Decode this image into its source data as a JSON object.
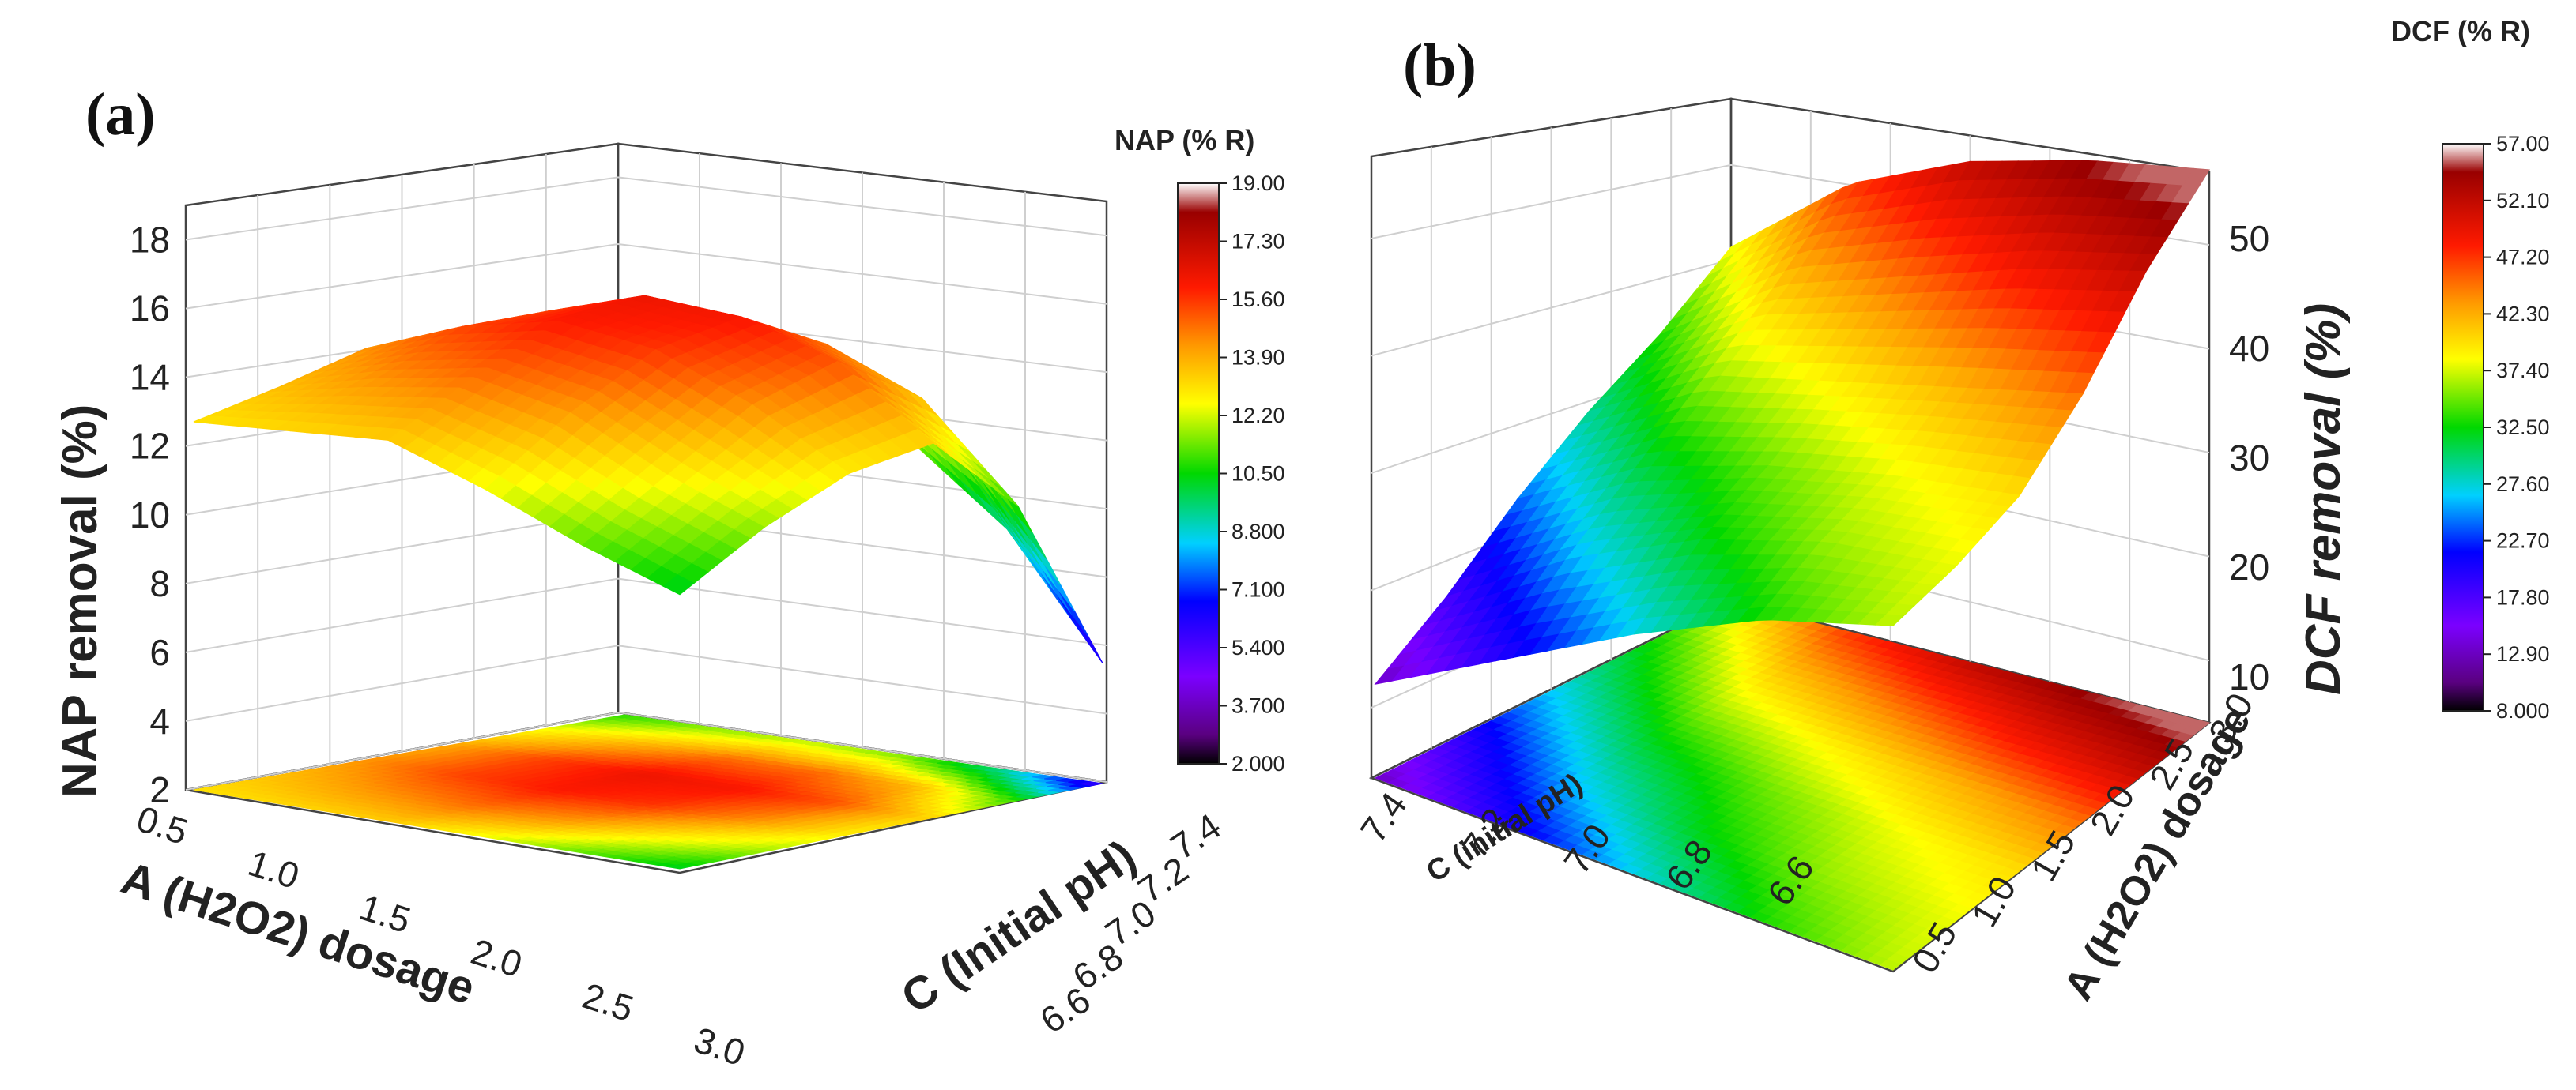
{
  "chart_data": [
    {
      "type": "surface3d",
      "panel_label": "(a)",
      "zlabel": "NAP removal (%)",
      "xlabel": "A (H2O2) dosage",
      "ylabel": "C (Initial pH)",
      "x_ticks": [
        "0.5",
        "1.0",
        "1.5",
        "2.0",
        "2.5",
        "3.0"
      ],
      "y_ticks": [
        "6.6",
        "6.8",
        "7.0",
        "7.2",
        "7.4"
      ],
      "z_ticks": [
        "2",
        "4",
        "6",
        "8",
        "10",
        "12",
        "14",
        "16",
        "18"
      ],
      "zlim": [
        2,
        19
      ],
      "surface_z": [
        [
          13.0,
          13.2,
          13.4,
          12.4,
          11.2,
          10.2
        ],
        [
          13.6,
          14.3,
          14.8,
          14.2,
          12.8,
          11.7
        ],
        [
          14.3,
          15.4,
          16.0,
          15.6,
          14.4,
          12.8
        ],
        [
          14.0,
          15.4,
          16.3,
          16.1,
          15.2,
          13.2
        ],
        [
          12.6,
          13.8,
          14.8,
          14.8,
          13.6,
          10.8
        ],
        [
          10.8,
          11.6,
          12.0,
          11.4,
          9.2,
          5.6
        ]
      ],
      "colorbar": {
        "title": "NAP (% R)",
        "ticks": [
          "19.00",
          "17.30",
          "15.60",
          "13.90",
          "12.20",
          "10.50",
          "8.800",
          "7.100",
          "5.400",
          "3.700",
          "2.000"
        ]
      }
    },
    {
      "type": "surface3d",
      "panel_label": "(b)",
      "zlabel": "DCF removal (%)",
      "xlabel": "A (H2O2) dosage",
      "ylabel": "C (initial pH)",
      "x_ticks": [
        "0.5",
        "1.0",
        "1.5",
        "2.0",
        "2.5",
        "3.0"
      ],
      "y_ticks": [
        "7.4",
        "7.2",
        "7.0",
        "6.8",
        "6.6"
      ],
      "z_ticks": [
        "10",
        "20",
        "30",
        "40",
        "50"
      ],
      "zlim": [
        8,
        57
      ],
      "surface_z": [
        [
          13,
          18,
          24,
          29,
          33,
          38
        ],
        [
          20,
          26,
          31,
          36,
          41,
          47
        ],
        [
          27,
          32,
          35,
          39,
          45,
          52
        ],
        [
          33,
          36,
          38,
          42,
          49,
          55
        ],
        [
          37,
          38,
          40,
          45,
          52,
          57
        ]
      ],
      "colorbar": {
        "title": "DCF (% R)",
        "ticks": [
          "57.00",
          "52.10",
          "47.20",
          "42.30",
          "37.40",
          "32.50",
          "27.60",
          "22.70",
          "17.80",
          "12.90",
          "8.000"
        ]
      }
    }
  ]
}
